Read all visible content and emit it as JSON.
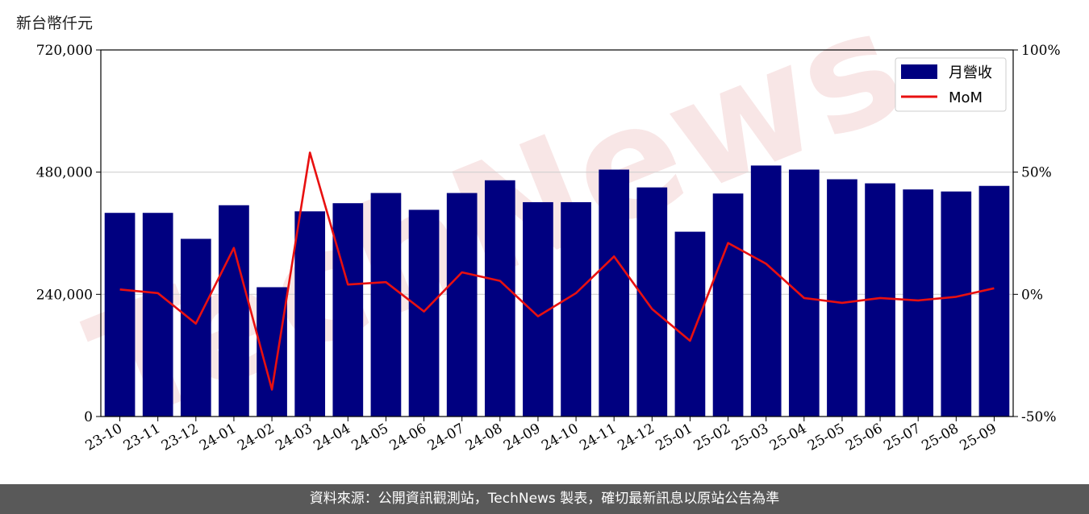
{
  "unit_label": "新台幣仟元",
  "footer": "資料來源：公開資訊觀測站，TechNews 製表，確切最新訊息以原站公告為準",
  "watermark": "TechNews",
  "colors": {
    "bar": "#000080",
    "line": "#e81010",
    "grid": "#d0d0d0",
    "footer_bg": "#595959",
    "watermark": "#f3d3d3"
  },
  "chart_data": {
    "type": "bar",
    "categories": [
      "23-10",
      "23-11",
      "23-12",
      "24-01",
      "24-02",
      "24-03",
      "24-04",
      "24-05",
      "24-06",
      "24-07",
      "24-08",
      "24-09",
      "24-10",
      "24-11",
      "24-12",
      "25-01",
      "25-02",
      "25-03",
      "25-04",
      "25-05",
      "25-06",
      "25-07",
      "25-08",
      "25-09"
    ],
    "series": [
      {
        "name": "月營收",
        "type": "bar",
        "axis": "left",
        "values": [
          400000,
          400000,
          349000,
          415000,
          254000,
          403000,
          419000,
          439000,
          406000,
          439000,
          464000,
          421000,
          421000,
          485000,
          450000,
          363000,
          438000,
          493000,
          485000,
          466000,
          458000,
          446000,
          442000,
          453000
        ]
      },
      {
        "name": "MoM",
        "type": "line",
        "axis": "right",
        "values": [
          2,
          0.5,
          -12,
          19,
          -39,
          58,
          4,
          5,
          -7,
          9,
          5.5,
          -9,
          0.5,
          15.5,
          -6,
          -19,
          21,
          12.5,
          -1.5,
          -3.5,
          -1.5,
          -2.5,
          -1,
          2.5
        ]
      }
    ],
    "left_axis": {
      "ylim": [
        0,
        720000
      ],
      "ticks": [
        "0",
        "240,000",
        "480,000",
        "720,000"
      ]
    },
    "right_axis": {
      "ylim": [
        -50,
        100
      ],
      "ticks": [
        "-50%",
        "0%",
        "50%",
        "100%"
      ]
    },
    "grid": "horizontal",
    "legend": "top-right"
  }
}
